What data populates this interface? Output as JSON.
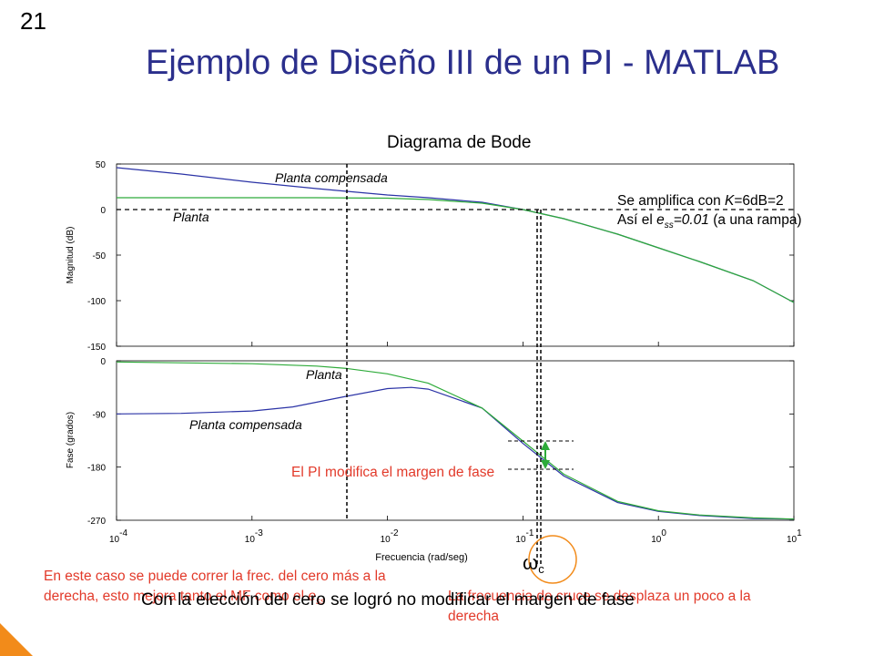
{
  "slide": {
    "number": "21",
    "title": "Ejemplo de Diseño III de un PI  -  MATLAB"
  },
  "chart_data": [
    {
      "type": "line",
      "title": "Diagrama de Bode",
      "xlabel": "Frecuencia  (rad/seg)",
      "ylabel": "Magnitud (dB)",
      "xscale": "log",
      "xlim": [
        0.0001,
        10
      ],
      "ylim": [
        -150,
        50
      ],
      "yticks": [
        "50",
        "0",
        "-50",
        "-100",
        "-150"
      ],
      "grid": false,
      "series": [
        {
          "name": "Planta compensada",
          "color": "#2b33a6",
          "x": [
            0.0001,
            0.0003,
            0.001,
            0.003,
            0.005,
            0.01,
            0.02,
            0.05,
            0.1,
            0.2,
            0.5,
            1,
            2,
            5,
            10
          ],
          "y": [
            46,
            39,
            30,
            23,
            20,
            16,
            13,
            8,
            0,
            -10,
            -27,
            -42,
            -57,
            -78,
            -102
          ]
        },
        {
          "name": "Planta",
          "color": "#2eab3a",
          "x": [
            0.0001,
            0.0003,
            0.001,
            0.003,
            0.01,
            0.02,
            0.05,
            0.1,
            0.2,
            0.5,
            1,
            2,
            5,
            10
          ],
          "y": [
            13,
            13,
            13,
            13,
            12.5,
            11,
            7,
            0,
            -10,
            -27,
            -42,
            -57,
            -78,
            -102
          ]
        }
      ],
      "annotations": [
        "Planta compensada",
        "Planta"
      ]
    },
    {
      "type": "line",
      "xlabel": "Frecuencia  (rad/seg)",
      "ylabel": "Fase (grados)",
      "xscale": "log",
      "xlim": [
        0.0001,
        10
      ],
      "ylim": [
        -270,
        0
      ],
      "yticks": [
        "0",
        "-90",
        "-180",
        "-270"
      ],
      "xticks": [
        {
          "base": "10",
          "exp": "-4"
        },
        {
          "base": "10",
          "exp": "-3"
        },
        {
          "base": "10",
          "exp": "-2"
        },
        {
          "base": "10",
          "exp": "-1"
        },
        {
          "base": "10",
          "exp": "0"
        },
        {
          "base": "10",
          "exp": "1"
        }
      ],
      "grid": false,
      "series": [
        {
          "name": "Planta compensada",
          "color": "#2b33a6",
          "x": [
            0.0001,
            0.0003,
            0.001,
            0.002,
            0.005,
            0.01,
            0.015,
            0.02,
            0.05,
            0.1,
            0.2,
            0.5,
            1,
            2,
            5,
            10
          ],
          "y": [
            -90,
            -89,
            -85,
            -78,
            -60,
            -47,
            -45,
            -48,
            -80,
            -140,
            -195,
            -240,
            -255,
            -262,
            -267,
            -268
          ]
        },
        {
          "name": "Planta",
          "color": "#2eab3a",
          "x": [
            0.0001,
            0.001,
            0.003,
            0.005,
            0.01,
            0.02,
            0.05,
            0.1,
            0.2,
            0.5,
            1,
            2,
            5,
            10
          ],
          "y": [
            -2,
            -5,
            -9,
            -13,
            -22,
            -38,
            -80,
            -136,
            -192,
            -238,
            -254,
            -261,
            -266,
            -268
          ]
        }
      ],
      "annotations": [
        "Planta",
        "Planta compensada"
      ]
    }
  ],
  "annotations": {
    "amp_line1_pre": "Se amplifica con ",
    "amp_line1_k": "K",
    "amp_line1_post": "=6dB=2",
    "amp_line2_pre": "Así el ",
    "amp_line2_e": "e",
    "amp_line2_sub": "ss",
    "amp_line2_val": "=0.01",
    "amp_line2_post": " (a una rampa)",
    "pi_margin": "El PI modifica el margen de fase",
    "omega_symbol": "ω",
    "omega_sub": "c"
  },
  "notes": {
    "left_text": "En este caso se puede correr la frec. del cero más a la derecha, esto mejora tanto el MF como el ",
    "left_e": "e",
    "left_sub": "ss",
    "right_text": "La frecuencia de cruce se desplaza un poco a la derecha",
    "bottom_caption": "Con la elección del cero se logró no modificar el margen de fase"
  },
  "colors": {
    "title": "#2b2f8c",
    "annotation_red": "#e23a2a",
    "arrow_green": "#2eab3a",
    "circle_orange": "#f28b1a",
    "corner_orange": "#f28b1a"
  }
}
